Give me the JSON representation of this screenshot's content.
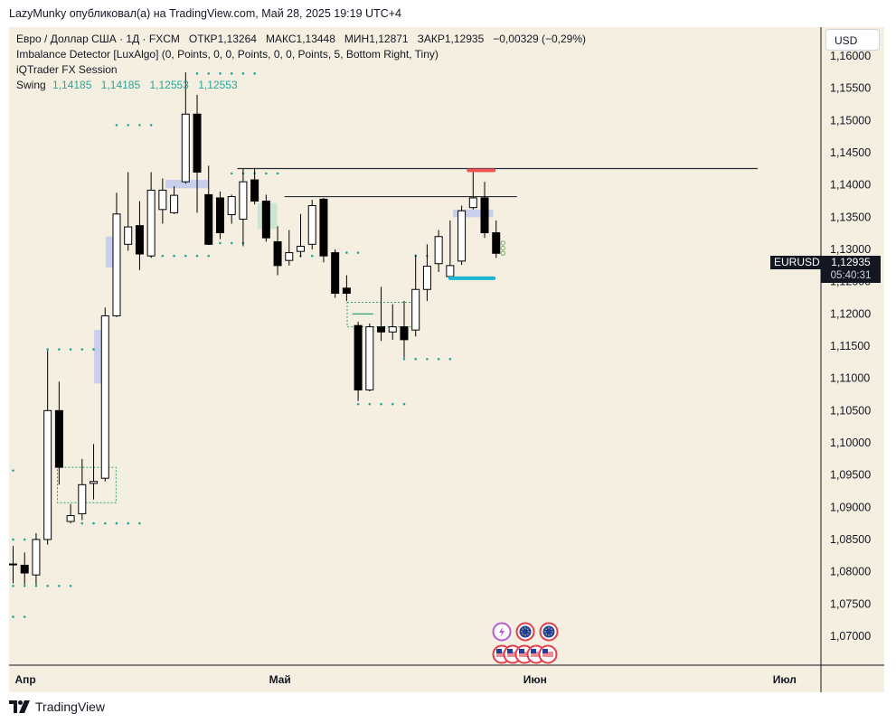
{
  "header": {
    "published_by": "LazyMunky опубликовал(а) на TradingView.com, Май 28, 2025 19:19 UTC+4"
  },
  "legend": {
    "symbol_line": "Евро / Доллар США · 1Д · FXCM",
    "open_label": "ОТКР",
    "open": "1,13264",
    "high_label": "МАКС",
    "high": "1,13448",
    "low_label": "МИН",
    "low": "1,12871",
    "close_label": "ЗАКР",
    "close": "1,12935",
    "change": "−0,00329 (−0,29%)",
    "indicator1": "Imbalance Detector [LuxAlgo] (0, Points, 0, 0, Points, 0, 0, Points, 5, Bottom Right, Tiny)",
    "indicator2": "iQTrader FX Session",
    "swing_label": "Swing",
    "swing_values": [
      "1,14185",
      "1,14185",
      "1,12553",
      "1,12553"
    ]
  },
  "currency_button": "USD",
  "price_tag": {
    "symbol": "EURUSD",
    "price": "1,12935",
    "countdown": "05:40:31"
  },
  "colors": {
    "background": "#f5efe1",
    "bull_body": "#ffffff",
    "bear_body": "#000000",
    "swing_dots": "#26a69a",
    "imbalance_blue": "#b8c4ef",
    "imbalance_green": "#b9e3c9",
    "red_marker": "#f05454",
    "cyan_marker": "#1bb6d4"
  },
  "brand": "TradingView",
  "chart_data": {
    "type": "candlestick",
    "symbol": "EURUSD",
    "timeframe": "1D",
    "x_ticks": [
      "Апр",
      "Май",
      "Июн",
      "Июл"
    ],
    "y_ticks": [
      "1,07000",
      "1,07500",
      "1,08000",
      "1,08500",
      "1,09000",
      "1,09500",
      "1,10000",
      "1,10500",
      "1,11000",
      "1,11500",
      "1,12000",
      "1,12500",
      "1,13000",
      "1,13500",
      "1,14000",
      "1,14500",
      "1,15000",
      "1,15500",
      "1,16000"
    ],
    "ylim": [
      1.0655,
      1.1645
    ],
    "candles": [
      {
        "o": 1.0812,
        "h": 1.084,
        "l": 1.0782,
        "c": 1.0812
      },
      {
        "o": 1.081,
        "h": 1.083,
        "l": 1.078,
        "c": 1.0798
      },
      {
        "o": 1.0795,
        "h": 1.086,
        "l": 1.078,
        "c": 1.085
      },
      {
        "o": 1.085,
        "h": 1.1143,
        "l": 1.0842,
        "c": 1.105
      },
      {
        "o": 1.105,
        "h": 1.1095,
        "l": 1.0935,
        "c": 1.0962
      },
      {
        "o": 1.0878,
        "h": 1.0905,
        "l": 1.0875,
        "c": 1.0887
      },
      {
        "o": 1.089,
        "h": 1.0975,
        "l": 1.088,
        "c": 1.0935
      },
      {
        "o": 1.0937,
        "h": 1.0998,
        "l": 1.0912,
        "c": 1.094
      },
      {
        "o": 1.0945,
        "h": 1.121,
        "l": 1.094,
        "c": 1.1197
      },
      {
        "o": 1.1197,
        "h": 1.1388,
        "l": 1.1195,
        "c": 1.1355
      },
      {
        "o": 1.1308,
        "h": 1.142,
        "l": 1.1298,
        "c": 1.1335
      },
      {
        "o": 1.1337,
        "h": 1.1375,
        "l": 1.1268,
        "c": 1.1293
      },
      {
        "o": 1.129,
        "h": 1.142,
        "l": 1.1287,
        "c": 1.1392
      },
      {
        "o": 1.1362,
        "h": 1.141,
        "l": 1.134,
        "c": 1.1392
      },
      {
        "o": 1.1357,
        "h": 1.1398,
        "l": 1.1355,
        "c": 1.1384
      },
      {
        "o": 1.1405,
        "h": 1.1575,
        "l": 1.1402,
        "c": 1.151
      },
      {
        "o": 1.151,
        "h": 1.154,
        "l": 1.1357,
        "c": 1.142
      },
      {
        "o": 1.1385,
        "h": 1.143,
        "l": 1.1307,
        "c": 1.1308
      },
      {
        "o": 1.138,
        "h": 1.139,
        "l": 1.1316,
        "c": 1.1326
      },
      {
        "o": 1.1354,
        "h": 1.1385,
        "l": 1.134,
        "c": 1.1382
      },
      {
        "o": 1.1347,
        "h": 1.1425,
        "l": 1.1305,
        "c": 1.1405
      },
      {
        "o": 1.1408,
        "h": 1.1425,
        "l": 1.137,
        "c": 1.1375
      },
      {
        "o": 1.1375,
        "h": 1.1385,
        "l": 1.1312,
        "c": 1.1318
      },
      {
        "o": 1.1312,
        "h": 1.1336,
        "l": 1.126,
        "c": 1.1275
      },
      {
        "o": 1.1283,
        "h": 1.133,
        "l": 1.1275,
        "c": 1.1295
      },
      {
        "o": 1.1297,
        "h": 1.1355,
        "l": 1.1288,
        "c": 1.1305
      },
      {
        "o": 1.1308,
        "h": 1.1377,
        "l": 1.13,
        "c": 1.1368
      },
      {
        "o": 1.1378,
        "h": 1.138,
        "l": 1.128,
        "c": 1.129
      },
      {
        "o": 1.1295,
        "h": 1.13,
        "l": 1.1225,
        "c": 1.1232
      },
      {
        "o": 1.124,
        "h": 1.126,
        "l": 1.122,
        "c": 1.1232
      },
      {
        "o": 1.1182,
        "h": 1.1188,
        "l": 1.1065,
        "c": 1.1082
      },
      {
        "o": 1.1082,
        "h": 1.1185,
        "l": 1.108,
        "c": 1.118
      },
      {
        "o": 1.118,
        "h": 1.1242,
        "l": 1.1158,
        "c": 1.1172
      },
      {
        "o": 1.1172,
        "h": 1.1215,
        "l": 1.116,
        "c": 1.118
      },
      {
        "o": 1.118,
        "h": 1.122,
        "l": 1.1132,
        "c": 1.116
      },
      {
        "o": 1.1175,
        "h": 1.1292,
        "l": 1.1165,
        "c": 1.1238
      },
      {
        "o": 1.1238,
        "h": 1.1308,
        "l": 1.122,
        "c": 1.1274
      },
      {
        "o": 1.1278,
        "h": 1.133,
        "l": 1.1265,
        "c": 1.132
      },
      {
        "o": 1.1258,
        "h": 1.1345,
        "l": 1.1255,
        "c": 1.1275
      },
      {
        "o": 1.1282,
        "h": 1.1368,
        "l": 1.1276,
        "c": 1.136
      },
      {
        "o": 1.1365,
        "h": 1.142,
        "l": 1.1362,
        "c": 1.138
      },
      {
        "o": 1.138,
        "h": 1.1405,
        "l": 1.1318,
        "c": 1.1326
      },
      {
        "o": 1.1326,
        "h": 1.1345,
        "l": 1.1287,
        "c": 1.1294
      }
    ],
    "levels": [
      {
        "label": "horizontal line",
        "value": 1.14255
      },
      {
        "label": "horizontal line",
        "value": 1.1382
      }
    ],
    "swing_high": 1.14185,
    "swing_low": 1.12553
  }
}
